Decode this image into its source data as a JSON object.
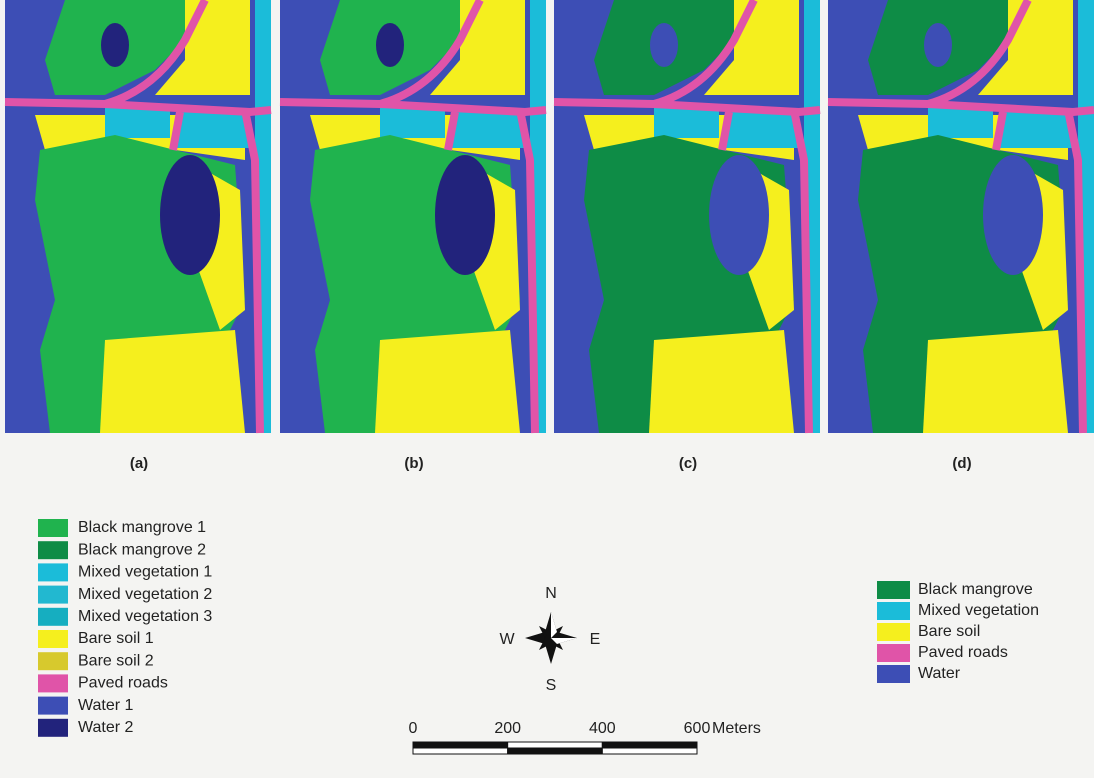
{
  "panels": [
    {
      "label": "(a)"
    },
    {
      "label": "(b)"
    },
    {
      "label": "(c)"
    },
    {
      "label": "(d)"
    }
  ],
  "legend_left": [
    {
      "label": "Black mangrove 1",
      "color": "#20b34e"
    },
    {
      "label": "Black mangrove 2",
      "color": "#0e8c46"
    },
    {
      "label": "Mixed vegetation 1",
      "color": "#1bbcd9"
    },
    {
      "label": "Mixed vegetation 2",
      "color": "#22b8d0"
    },
    {
      "label": "Mixed vegetation 3",
      "color": "#16aec0"
    },
    {
      "label": "Bare soil 1",
      "color": "#f5ef1e"
    },
    {
      "label": "Bare soil 2",
      "color": "#d7c92d"
    },
    {
      "label": "Paved roads",
      "color": "#e054a8"
    },
    {
      "label": "Water 1",
      "color": "#3d4eb5"
    },
    {
      "label": "Water 2",
      "color": "#22237c"
    }
  ],
  "legend_right": [
    {
      "label": "Black mangrove",
      "color": "#0e8c46"
    },
    {
      "label": "Mixed vegetation",
      "color": "#1bbcd9"
    },
    {
      "label": "Bare soil",
      "color": "#f5ef1e"
    },
    {
      "label": "Paved roads",
      "color": "#e054a8"
    },
    {
      "label": "Water",
      "color": "#3d4eb5"
    }
  ],
  "compass": {
    "n": "N",
    "e": "E",
    "s": "S",
    "w": "W"
  },
  "scale_bar": {
    "ticks": [
      0,
      200,
      400,
      600
    ],
    "unit": "Meters"
  }
}
